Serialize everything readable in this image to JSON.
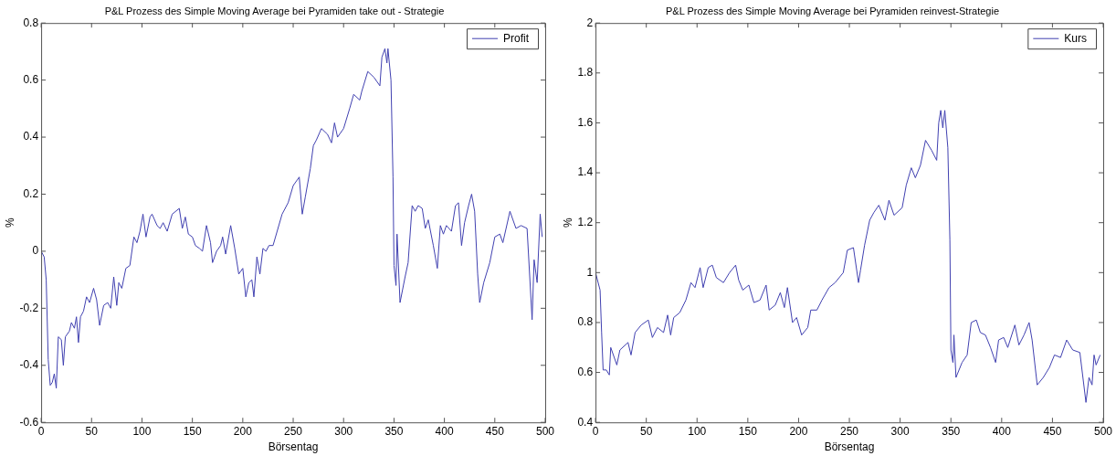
{
  "chart_data": [
    {
      "type": "line",
      "title": "P&L Prozess des Simple Moving Average bei Pyramiden take out - Strategie",
      "xlabel": "Börsentag",
      "ylabel": "%",
      "xlim": [
        0,
        500
      ],
      "xticks": [
        0,
        50,
        100,
        150,
        200,
        250,
        300,
        350,
        400,
        450,
        500
      ],
      "ylim": [
        -0.6,
        0.8
      ],
      "yticks": [
        -0.6,
        -0.4,
        -0.2,
        0,
        0.2,
        0.4,
        0.6,
        0.8
      ],
      "grid": false,
      "legend": "top right",
      "marker": "none",
      "line_style": "solid",
      "x": [
        0,
        3,
        5,
        7,
        9,
        11,
        13,
        15,
        17,
        20,
        22,
        24,
        28,
        30,
        33,
        35,
        37,
        39,
        42,
        45,
        48,
        52,
        55,
        58,
        62,
        66,
        69,
        72,
        75,
        77,
        80,
        84,
        88,
        92,
        95,
        98,
        101,
        104,
        108,
        110,
        115,
        118,
        121,
        125,
        130,
        137,
        140,
        143,
        146,
        150,
        153,
        157,
        160,
        164,
        168,
        170,
        174,
        178,
        180,
        183,
        188,
        192,
        196,
        200,
        203,
        206,
        209,
        211,
        214,
        217,
        220,
        223,
        226,
        230,
        239,
        245,
        250,
        256,
        259,
        262,
        267,
        270,
        273,
        278,
        284,
        288,
        291,
        294,
        300,
        306,
        310,
        316,
        318,
        324,
        330,
        336,
        338,
        341,
        343,
        344,
        347,
        349,
        350,
        352,
        353,
        356,
        361,
        364,
        368,
        371,
        374,
        378,
        381,
        384,
        389,
        393,
        396,
        399,
        402,
        407,
        411,
        414,
        417,
        420,
        424,
        427,
        430,
        433,
        435,
        439,
        445,
        450,
        455,
        458,
        465,
        471,
        476,
        482,
        487,
        489,
        492,
        495,
        497
      ],
      "series": [
        {
          "name": "Profit",
          "color": "#4040b0",
          "values": [
            0,
            -0.02,
            -0.1,
            -0.38,
            -0.47,
            -0.46,
            -0.43,
            -0.48,
            -0.3,
            -0.31,
            -0.4,
            -0.3,
            -0.28,
            -0.25,
            -0.27,
            -0.23,
            -0.32,
            -0.23,
            -0.21,
            -0.16,
            -0.18,
            -0.13,
            -0.17,
            -0.26,
            -0.19,
            -0.18,
            -0.2,
            -0.09,
            -0.19,
            -0.11,
            -0.13,
            -0.06,
            -0.05,
            0.05,
            0.03,
            0.07,
            0.13,
            0.05,
            0.12,
            0.13,
            0.09,
            0.08,
            0.1,
            0.07,
            0.13,
            0.15,
            0.08,
            0.12,
            0.06,
            0.05,
            0.02,
            0.01,
            0,
            0.09,
            0.03,
            -0.04,
            0,
            0.02,
            0.05,
            -0.01,
            0.09,
            0.01,
            -0.08,
            -0.06,
            -0.16,
            -0.11,
            -0.1,
            -0.16,
            -0.02,
            -0.08,
            0.01,
            0,
            0.02,
            0.02,
            0.13,
            0.17,
            0.23,
            0.26,
            0.13,
            0.19,
            0.29,
            0.37,
            0.39,
            0.43,
            0.41,
            0.38,
            0.45,
            0.4,
            0.43,
            0.5,
            0.55,
            0.53,
            0.56,
            0.63,
            0.61,
            0.58,
            0.68,
            0.71,
            0.66,
            0.71,
            0.6,
            0.26,
            -0.05,
            -0.12,
            0.06,
            -0.18,
            -0.09,
            -0.04,
            0.16,
            0.14,
            0.16,
            0.15,
            0.08,
            0.11,
            0.02,
            -0.06,
            0.09,
            0.06,
            0.09,
            0.07,
            0.16,
            0.17,
            0.02,
            0.1,
            0.16,
            0.2,
            0.14,
            -0.08,
            -0.18,
            -0.11,
            -0.04,
            0.05,
            0.06,
            0.03,
            0.14,
            0.08,
            0.09,
            0.08,
            -0.24,
            -0.03,
            -0.11,
            0.13,
            0.05
          ]
        }
      ]
    },
    {
      "type": "line",
      "title": "P&L Prozess des Simple Moving Average bei Pyramiden reinvest-Strategie",
      "xlabel": "Börsentag",
      "ylabel": "%",
      "xlim": [
        0,
        500
      ],
      "xticks": [
        0,
        50,
        100,
        150,
        200,
        250,
        300,
        350,
        400,
        450,
        500
      ],
      "ylim": [
        0.4,
        2
      ],
      "yticks": [
        0.4,
        0.6,
        0.8,
        1,
        1.2,
        1.4,
        1.6,
        1.8,
        2
      ],
      "grid": false,
      "legend": "top right",
      "marker": "none",
      "line_style": "solid",
      "x": [
        0,
        4.5,
        6,
        7.5,
        10.6,
        13.6,
        15,
        21,
        24,
        32,
        35,
        39,
        45,
        52,
        56,
        61,
        67,
        71,
        74,
        77,
        83,
        89,
        94,
        98,
        103,
        106,
        111,
        115,
        119,
        126,
        132,
        138,
        141,
        145,
        151,
        156,
        162,
        168,
        171,
        177,
        182,
        186,
        189,
        194,
        198,
        203,
        209,
        212,
        218,
        223,
        230,
        236,
        244,
        248,
        254,
        259,
        261,
        265,
        270,
        274,
        279,
        285,
        289,
        294,
        302,
        306,
        311,
        315,
        320,
        325,
        331,
        336,
        338,
        340,
        342,
        344,
        347,
        349,
        350,
        352,
        353,
        355,
        361,
        366,
        370,
        375,
        379,
        384,
        389,
        394,
        397,
        402,
        406,
        413,
        417,
        422,
        427,
        430,
        435,
        441,
        447,
        452,
        458,
        464,
        470,
        477,
        483,
        486,
        489,
        491,
        493,
        497
      ],
      "series": [
        {
          "name": "Kurs",
          "color": "#4040b0",
          "values": [
            1,
            0.93,
            0.76,
            0.61,
            0.61,
            0.59,
            0.7,
            0.63,
            0.69,
            0.72,
            0.67,
            0.76,
            0.79,
            0.81,
            0.74,
            0.78,
            0.76,
            0.83,
            0.75,
            0.82,
            0.84,
            0.89,
            0.96,
            0.94,
            1.02,
            0.94,
            1.02,
            1.03,
            0.98,
            0.96,
            1,
            1.03,
            0.97,
            0.93,
            0.95,
            0.88,
            0.89,
            0.95,
            0.85,
            0.87,
            0.92,
            0.86,
            0.94,
            0.8,
            0.82,
            0.75,
            0.78,
            0.85,
            0.85,
            0.89,
            0.94,
            0.96,
            1,
            1.09,
            1.1,
            0.96,
            1.01,
            1.11,
            1.21,
            1.24,
            1.27,
            1.21,
            1.29,
            1.23,
            1.26,
            1.35,
            1.42,
            1.38,
            1.43,
            1.53,
            1.49,
            1.45,
            1.6,
            1.65,
            1.58,
            1.65,
            1.5,
            1.13,
            0.69,
            0.64,
            0.75,
            0.58,
            0.64,
            0.67,
            0.8,
            0.81,
            0.76,
            0.75,
            0.7,
            0.64,
            0.73,
            0.74,
            0.7,
            0.79,
            0.71,
            0.75,
            0.8,
            0.73,
            0.55,
            0.58,
            0.62,
            0.67,
            0.66,
            0.73,
            0.69,
            0.68,
            0.48,
            0.58,
            0.55,
            0.67,
            0.63,
            0.67
          ]
        }
      ]
    }
  ]
}
